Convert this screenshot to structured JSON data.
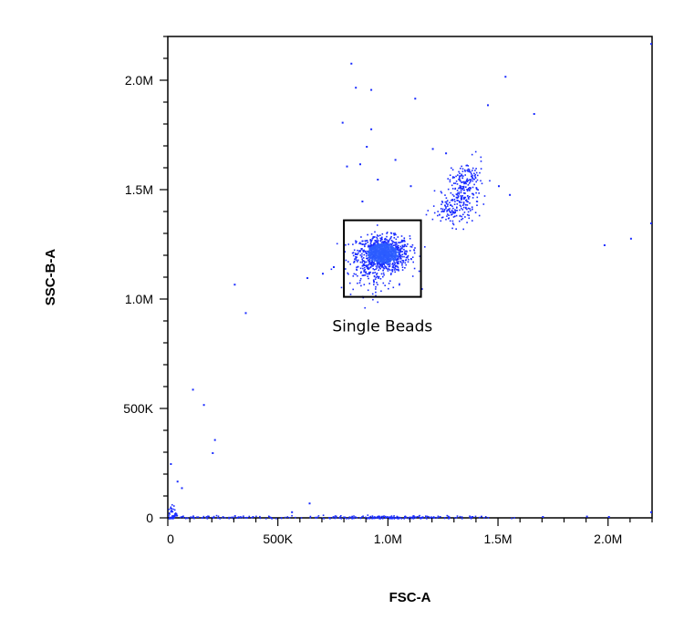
{
  "chart_data": {
    "type": "scatter",
    "title": "",
    "xlabel": "FSC-A",
    "ylabel": "SSC-B-A",
    "xlim": [
      0,
      2200000
    ],
    "ylim": [
      0,
      2200000
    ],
    "x_ticks": [
      {
        "value": 0,
        "label": "0"
      },
      {
        "value": 500000,
        "label": "500K"
      },
      {
        "value": 1000000,
        "label": "1.0M"
      },
      {
        "value": 1500000,
        "label": "1.5M"
      },
      {
        "value": 2000000,
        "label": "2.0M"
      }
    ],
    "y_ticks": [
      {
        "value": 0,
        "label": "0"
      },
      {
        "value": 500000,
        "label": "500K"
      },
      {
        "value": 1000000,
        "label": "1.0M"
      },
      {
        "value": 1500000,
        "label": "1.5M"
      },
      {
        "value": 2000000,
        "label": "2.0M"
      }
    ],
    "grid": false,
    "point_color": "#1a2cff",
    "dense_color": "#2b5cff",
    "populations": [
      {
        "cx": 975000,
        "cy": 1210000,
        "sx": 60000,
        "sy": 40000,
        "n": 900
      },
      {
        "cx": 920000,
        "cy": 1120000,
        "sx": 60000,
        "sy": 50000,
        "n": 110
      },
      {
        "cx": 1340000,
        "cy": 1490000,
        "sx": 35000,
        "sy": 50000,
        "n": 160
      },
      {
        "cx": 1290000,
        "cy": 1410000,
        "sx": 45000,
        "sy": 35000,
        "n": 110
      },
      {
        "cx": 1370000,
        "cy": 1560000,
        "sx": 30000,
        "sy": 40000,
        "n": 60
      },
      {
        "cx": 1000000,
        "cy": 5000,
        "sx": 200000,
        "sy": 4000,
        "n": 200
      },
      {
        "cx": 200000,
        "cy": 5000,
        "sx": 180000,
        "sy": 4000,
        "n": 90
      },
      {
        "cx": 10000,
        "cy": 20000,
        "sx": 15000,
        "sy": 20000,
        "n": 60
      }
    ],
    "scatter_points": [
      [
        830000,
        2080000
      ],
      [
        850000,
        1970000
      ],
      [
        920000,
        1960000
      ],
      [
        1120000,
        1920000
      ],
      [
        1530000,
        2020000
      ],
      [
        1450000,
        1890000
      ],
      [
        1660000,
        1850000
      ],
      [
        790000,
        1810000
      ],
      [
        920000,
        1780000
      ],
      [
        900000,
        1700000
      ],
      [
        870000,
        1620000
      ],
      [
        810000,
        1610000
      ],
      [
        1200000,
        1690000
      ],
      [
        1260000,
        1670000
      ],
      [
        1030000,
        1640000
      ],
      [
        950000,
        1550000
      ],
      [
        1100000,
        1520000
      ],
      [
        880000,
        1450000
      ],
      [
        1500000,
        1520000
      ],
      [
        1550000,
        1480000
      ],
      [
        300000,
        1070000
      ],
      [
        350000,
        940000
      ],
      [
        630000,
        1100000
      ],
      [
        700000,
        1120000
      ],
      [
        750000,
        1150000
      ],
      [
        1150000,
        1050000
      ],
      [
        1980000,
        1250000
      ],
      [
        2100000,
        1280000
      ],
      [
        2200000,
        1350000
      ],
      [
        2200000,
        2170000
      ],
      [
        110000,
        590000
      ],
      [
        160000,
        520000
      ],
      [
        210000,
        360000
      ],
      [
        200000,
        300000
      ],
      [
        40000,
        170000
      ],
      [
        60000,
        140000
      ],
      [
        10000,
        250000
      ],
      [
        640000,
        70000
      ],
      [
        560000,
        30000
      ],
      [
        1900000,
        10000
      ],
      [
        2200000,
        30000
      ],
      [
        1700000,
        5000
      ],
      [
        2000000,
        5000
      ]
    ],
    "gate": {
      "label": "Single Beads",
      "x_range": [
        800000,
        1150000
      ],
      "y_range": [
        1010000,
        1360000
      ]
    }
  }
}
